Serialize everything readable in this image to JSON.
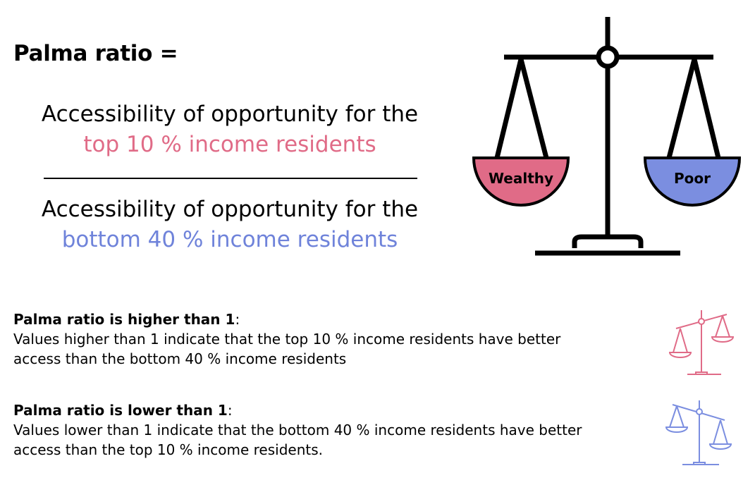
{
  "title": "Palma ratio =",
  "numerator": {
    "line1": "Accessibility of opportunity for the",
    "line2": "top 10 % income residents"
  },
  "denominator": {
    "line1": "Accessibility of opportunity for the",
    "line2": "bottom 40 % income residents"
  },
  "scale": {
    "left_pan_label": "Wealthy",
    "right_pan_label": "Poor"
  },
  "higher": {
    "heading": "Palma ratio is higher than 1",
    "heading_suffix": ":",
    "line1": "Values higher than 1 indicate that the top 10 % income residents have better",
    "line2": "access than the bottom 40 % income residents"
  },
  "lower": {
    "heading": "Palma ratio is lower than 1",
    "heading_suffix": ":",
    "line1": "Values lower than 1 indicate that the bottom 40 % income residents have better",
    "line2": "access than the top 10 % income residents."
  },
  "colors": {
    "wealthy": "#e06b87",
    "poor": "#7b8ee0",
    "text": "#000000"
  },
  "icons": {
    "main": "balance-scale-icon",
    "higher": "scale-tilted-left-up-icon",
    "lower": "scale-tilted-right-down-icon"
  }
}
